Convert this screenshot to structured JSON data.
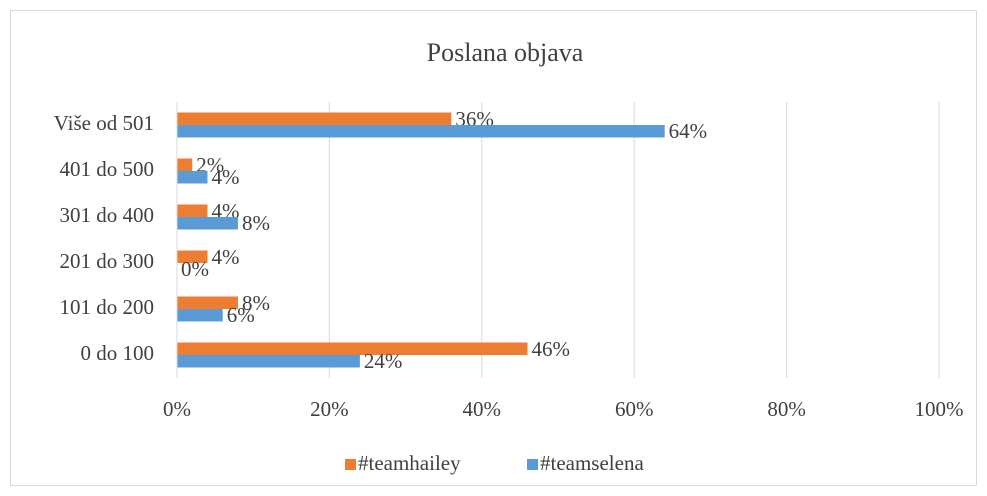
{
  "chart_data": {
    "type": "hbar",
    "title": "Poslana objava",
    "categories": [
      "Više od 501",
      "401 do 500",
      "301 do 400",
      "201 do 300",
      "101 do 200",
      "0 do 100"
    ],
    "series": [
      {
        "name": "#teamhailey",
        "color": "#ed7d31",
        "values": [
          36,
          2,
          4,
          4,
          8,
          46
        ],
        "value_labels": [
          "36%",
          "2%",
          "4%",
          "4%",
          "8%",
          "46%"
        ]
      },
      {
        "name": "#teamselena",
        "color": "#5b9bd5",
        "values": [
          64,
          4,
          8,
          0,
          6,
          24
        ],
        "value_labels": [
          "64%",
          "4%",
          "8%",
          "0%",
          "6%",
          "24%"
        ]
      }
    ],
    "xlim": [
      0,
      100
    ],
    "xticks": [
      {
        "value": 0,
        "label": "0%"
      },
      {
        "value": 20,
        "label": "20%"
      },
      {
        "value": 40,
        "label": "40%"
      },
      {
        "value": 60,
        "label": "60%"
      },
      {
        "value": 80,
        "label": "80%"
      },
      {
        "value": 100,
        "label": "100%"
      }
    ],
    "grid": true,
    "legend": "bottom"
  }
}
